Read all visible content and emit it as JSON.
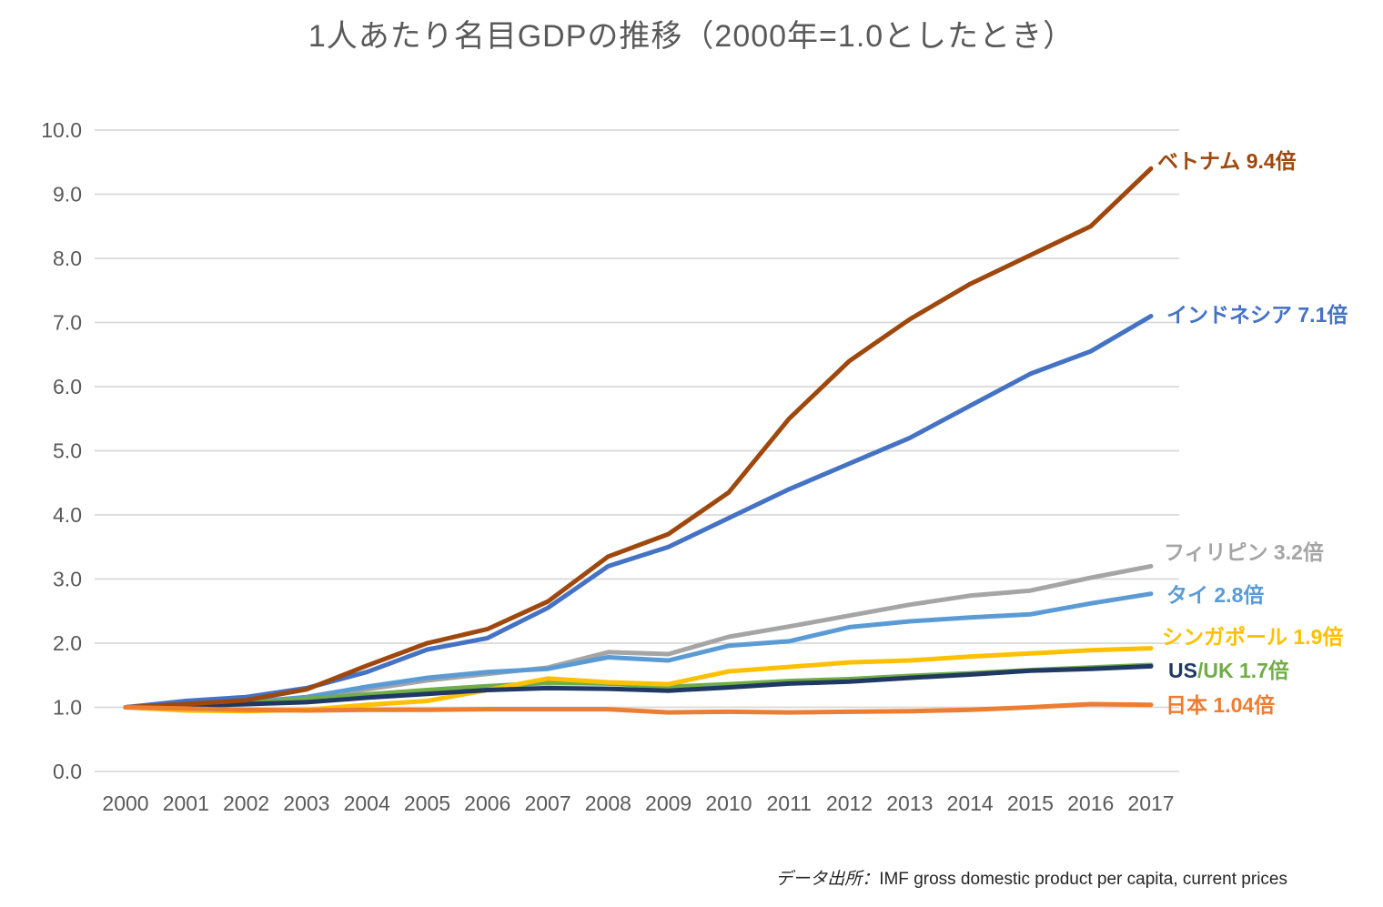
{
  "title": "1人あたり名目GDPの推移（2000年=1.0としたとき）",
  "source_note": {
    "prefix": "データ出所：",
    "body": "IMF gross domestic product per capita, current prices"
  },
  "chart_data": {
    "type": "line",
    "title": "1人あたり名目GDPの推移（2000年=1.0としたとき）",
    "x": [
      2000,
      2001,
      2002,
      2003,
      2004,
      2005,
      2006,
      2007,
      2008,
      2009,
      2010,
      2011,
      2012,
      2013,
      2014,
      2015,
      2016,
      2017
    ],
    "x_tick_labels": [
      "2000",
      "2001",
      "2002",
      "2003",
      "2004",
      "2005",
      "2006",
      "2007",
      "2008",
      "2009",
      "2010",
      "2011",
      "2012",
      "2013",
      "2014",
      "2015",
      "2016",
      "2017"
    ],
    "y_tick_labels": [
      "0.0",
      "1.0",
      "2.0",
      "3.0",
      "4.0",
      "5.0",
      "6.0",
      "7.0",
      "8.0",
      "9.0",
      "10.0"
    ],
    "ylim": [
      0,
      10
    ],
    "grid": true,
    "gridline_color": "#D9D9D9",
    "axis_label_color": "#595959",
    "legend_position": "right-end-labels",
    "series": [
      {
        "id": "philippines",
        "name": "フィリピン",
        "color": "#A5A5A5",
        "values": [
          1.0,
          1.03,
          1.07,
          1.14,
          1.28,
          1.42,
          1.52,
          1.62,
          1.86,
          1.83,
          2.1,
          2.26,
          2.43,
          2.6,
          2.74,
          2.82,
          3.02,
          3.2
        ]
      },
      {
        "id": "thailand",
        "name": "タイ",
        "color": "#5B9BD5",
        "values": [
          1.0,
          1.02,
          1.08,
          1.16,
          1.32,
          1.46,
          1.55,
          1.6,
          1.78,
          1.73,
          1.96,
          2.03,
          2.25,
          2.34,
          2.4,
          2.45,
          2.62,
          2.77
        ]
      },
      {
        "id": "uk",
        "name": "UK",
        "color": "#70AD47",
        "values": [
          1.0,
          1.03,
          1.07,
          1.13,
          1.2,
          1.27,
          1.33,
          1.38,
          1.37,
          1.32,
          1.36,
          1.41,
          1.44,
          1.49,
          1.53,
          1.58,
          1.62,
          1.66
        ]
      },
      {
        "id": "singapore",
        "name": "シンガポール",
        "color": "#FFC000",
        "values": [
          1.0,
          0.95,
          0.94,
          0.96,
          1.04,
          1.1,
          1.27,
          1.45,
          1.39,
          1.36,
          1.56,
          1.63,
          1.7,
          1.73,
          1.79,
          1.84,
          1.89,
          1.92
        ]
      },
      {
        "id": "us",
        "name": "US",
        "color": "#1F3864",
        "values": [
          1.0,
          1.02,
          1.05,
          1.08,
          1.15,
          1.21,
          1.27,
          1.3,
          1.29,
          1.26,
          1.31,
          1.37,
          1.4,
          1.46,
          1.51,
          1.57,
          1.6,
          1.64
        ]
      },
      {
        "id": "indonesia",
        "name": "インドネシア",
        "color": "#4472C4",
        "values": [
          1.0,
          1.1,
          1.16,
          1.3,
          1.55,
          1.9,
          2.08,
          2.55,
          3.2,
          3.5,
          3.95,
          4.4,
          4.8,
          5.2,
          5.7,
          6.2,
          6.55,
          7.1
        ]
      },
      {
        "id": "vietnam",
        "name": "ベトナム",
        "color": "#9E480E",
        "values": [
          1.0,
          1.05,
          1.11,
          1.28,
          1.65,
          2.0,
          2.22,
          2.65,
          3.35,
          3.7,
          4.35,
          5.5,
          6.4,
          7.05,
          7.6,
          8.05,
          8.5,
          9.4
        ]
      },
      {
        "id": "japan",
        "name": "日本",
        "color": "#ED7D31",
        "values": [
          1.0,
          0.98,
          0.96,
          0.95,
          0.96,
          0.96,
          0.97,
          0.97,
          0.97,
          0.92,
          0.93,
          0.92,
          0.93,
          0.94,
          0.96,
          1.0,
          1.05,
          1.04
        ]
      }
    ],
    "end_labels": [
      {
        "series": "ベトナム",
        "text": "ベトナム 9.4倍",
        "color": "#9E480E"
      },
      {
        "series": "インドネシア",
        "text": "インドネシア 7.1倍",
        "color": "#4472C4"
      },
      {
        "series": "フィリピン",
        "text": "フィリピン 3.2倍",
        "color": "#A5A5A5"
      },
      {
        "series": "タイ",
        "text": "タイ 2.8倍",
        "color": "#5B9BD5"
      },
      {
        "series": "シンガポール",
        "text": "シンガポール 1.9倍",
        "color": "#FFC000"
      },
      {
        "series": "US/UK",
        "parts": [
          {
            "text": "US",
            "color": "#1F3864"
          },
          {
            "text": "/UK 1.7倍",
            "color": "#70AD47"
          }
        ]
      },
      {
        "series": "日本",
        "text": "日本 1.04倍",
        "color": "#ED7D31"
      }
    ]
  }
}
